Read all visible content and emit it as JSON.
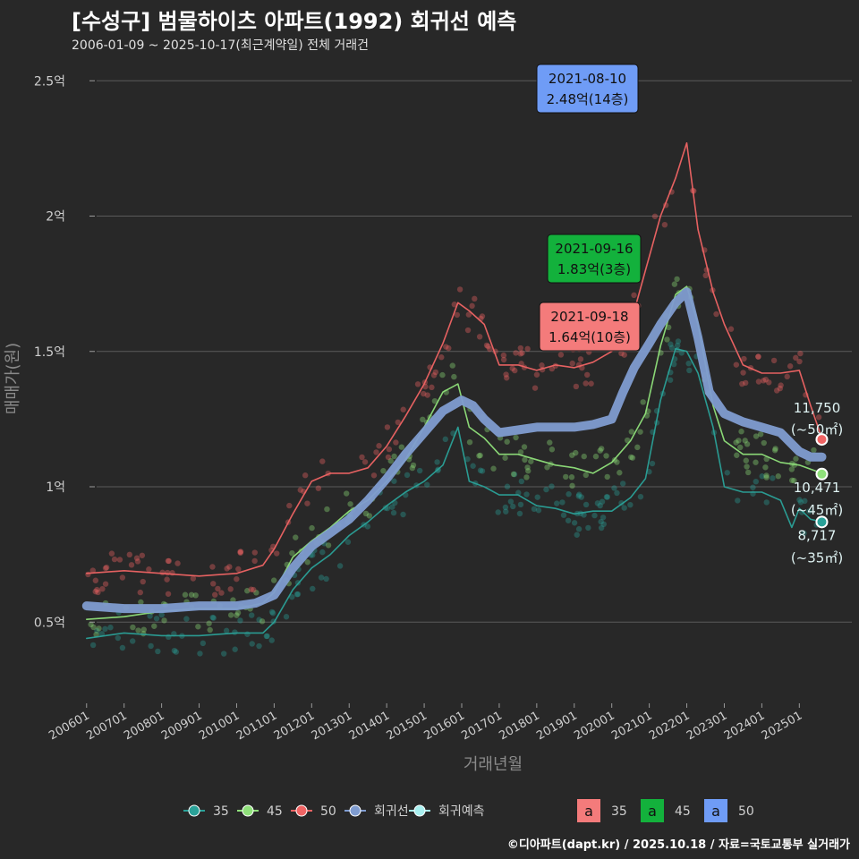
{
  "title": "[수성구] 범물하이츠 아파트(1992) 회귀선 예측",
  "subtitle": "2006-01-09 ~ 2025-10-17(최근계약일) 전체 거래건",
  "credit": "©디아파트(dapt.kr) / 2025.10.18 / 자료=국토교통부 실거래가",
  "colors": {
    "s35": "#2aa198",
    "s45": "#8fe07a",
    "s50": "#f06464",
    "reg": "#7f9cd0",
    "pred": "#a8f0f0"
  },
  "chart_data": {
    "type": "line",
    "title": "[수성구] 범물하이츠 아파트(1992) 회귀선 예측",
    "xlabel": "거래년월",
    "ylabel": "매매가(원)",
    "ylim": [
      0.2,
      2.6
    ],
    "xlim": [
      2005.6,
      2026.4
    ],
    "yticks": [
      {
        "value": 0.5,
        "label": "0.5억"
      },
      {
        "value": 1.0,
        "label": "1억"
      },
      {
        "value": 1.5,
        "label": "1.5억"
      },
      {
        "value": 2.0,
        "label": "2억"
      },
      {
        "value": 2.5,
        "label": "2.5억"
      }
    ],
    "xticks": [
      {
        "value": 2006,
        "label": "200601"
      },
      {
        "value": 2007,
        "label": "200701"
      },
      {
        "value": 2008,
        "label": "200801"
      },
      {
        "value": 2009,
        "label": "200901"
      },
      {
        "value": 2010,
        "label": "201001"
      },
      {
        "value": 2011,
        "label": "201101"
      },
      {
        "value": 2012,
        "label": "201201"
      },
      {
        "value": 2013,
        "label": "201301"
      },
      {
        "value": 2014,
        "label": "201401"
      },
      {
        "value": 2015,
        "label": "201501"
      },
      {
        "value": 2016,
        "label": "201601"
      },
      {
        "value": 2017,
        "label": "201701"
      },
      {
        "value": 2018,
        "label": "201801"
      },
      {
        "value": 2019,
        "label": "201901"
      },
      {
        "value": 2020,
        "label": "202001"
      },
      {
        "value": 2021,
        "label": "202101"
      },
      {
        "value": 2022,
        "label": "202201"
      },
      {
        "value": 2023,
        "label": "202301"
      },
      {
        "value": 2024,
        "label": "202401"
      },
      {
        "value": 2025,
        "label": "202501"
      }
    ],
    "series": [
      {
        "name": "35",
        "color": "#2aa198",
        "x": [
          2006.0,
          2007.0,
          2008.0,
          2009.0,
          2010.0,
          2010.7,
          2011.0,
          2011.5,
          2012.0,
          2012.5,
          2013.0,
          2013.5,
          2014.0,
          2014.5,
          2015.0,
          2015.5,
          2015.9,
          2016.2,
          2016.6,
          2017.0,
          2017.5,
          2018.0,
          2018.5,
          2019.0,
          2019.5,
          2020.0,
          2020.5,
          2020.9,
          2021.3,
          2021.7,
          2022.0,
          2022.3,
          2022.7,
          2023.0,
          2023.5,
          2024.0,
          2024.5,
          2024.8,
          2025.0,
          2025.3,
          2025.6
        ],
        "y": [
          0.44,
          0.46,
          0.45,
          0.45,
          0.46,
          0.46,
          0.5,
          0.62,
          0.7,
          0.75,
          0.82,
          0.87,
          0.93,
          0.98,
          1.02,
          1.08,
          1.22,
          1.02,
          1.0,
          0.97,
          0.97,
          0.93,
          0.92,
          0.9,
          0.91,
          0.91,
          0.96,
          1.03,
          1.32,
          1.51,
          1.5,
          1.42,
          1.22,
          1.0,
          0.98,
          0.98,
          0.95,
          0.85,
          0.92,
          0.88,
          0.87
        ]
      },
      {
        "name": "45",
        "color": "#8fe07a",
        "x": [
          2006.0,
          2007.0,
          2008.0,
          2009.0,
          2010.0,
          2010.7,
          2011.0,
          2011.5,
          2012.0,
          2012.5,
          2013.0,
          2013.5,
          2014.0,
          2014.5,
          2015.0,
          2015.5,
          2015.9,
          2016.2,
          2016.6,
          2017.0,
          2017.5,
          2018.0,
          2018.5,
          2019.0,
          2019.5,
          2020.0,
          2020.5,
          2020.9,
          2021.3,
          2021.7,
          2022.0,
          2022.3,
          2022.7,
          2023.0,
          2023.5,
          2024.0,
          2024.5,
          2025.0,
          2025.6
        ],
        "y": [
          0.51,
          0.52,
          0.54,
          0.55,
          0.55,
          0.57,
          0.61,
          0.74,
          0.8,
          0.85,
          0.91,
          0.95,
          1.02,
          1.1,
          1.22,
          1.35,
          1.38,
          1.22,
          1.18,
          1.12,
          1.12,
          1.1,
          1.08,
          1.07,
          1.05,
          1.09,
          1.17,
          1.27,
          1.52,
          1.71,
          1.74,
          1.6,
          1.3,
          1.17,
          1.12,
          1.12,
          1.09,
          1.08,
          1.05
        ]
      },
      {
        "name": "50",
        "color": "#f06464",
        "x": [
          2006.0,
          2007.0,
          2008.0,
          2009.0,
          2010.0,
          2010.7,
          2011.0,
          2011.5,
          2012.0,
          2012.5,
          2013.0,
          2013.5,
          2014.0,
          2014.5,
          2015.0,
          2015.5,
          2015.9,
          2016.2,
          2016.6,
          2017.0,
          2017.5,
          2018.0,
          2018.5,
          2019.0,
          2019.5,
          2020.0,
          2020.5,
          2020.9,
          2021.3,
          2021.7,
          2022.0,
          2022.3,
          2022.7,
          2023.0,
          2023.5,
          2024.0,
          2024.5,
          2025.0,
          2025.3,
          2025.6
        ],
        "y": [
          0.68,
          0.69,
          0.68,
          0.67,
          0.68,
          0.71,
          0.77,
          0.9,
          1.02,
          1.05,
          1.05,
          1.07,
          1.15,
          1.26,
          1.38,
          1.53,
          1.68,
          1.65,
          1.6,
          1.45,
          1.45,
          1.43,
          1.45,
          1.44,
          1.46,
          1.5,
          1.6,
          1.8,
          2.0,
          2.14,
          2.27,
          1.95,
          1.72,
          1.6,
          1.45,
          1.42,
          1.42,
          1.43,
          1.3,
          1.18
        ]
      },
      {
        "name": "회귀선",
        "color": "#7f9cd0",
        "x": [
          2006.0,
          2007.0,
          2008.0,
          2009.0,
          2010.0,
          2010.5,
          2011.0,
          2011.5,
          2012.0,
          2012.5,
          2013.0,
          2013.5,
          2014.0,
          2014.5,
          2015.0,
          2015.5,
          2016.0,
          2016.3,
          2016.6,
          2017.0,
          2017.5,
          2018.0,
          2018.5,
          2019.0,
          2019.5,
          2020.0,
          2020.3,
          2020.6,
          2021.0,
          2021.3,
          2021.7,
          2022.0,
          2022.3,
          2022.6,
          2023.0,
          2023.5,
          2024.0,
          2024.5,
          2025.0,
          2025.3,
          2025.6
        ],
        "y": [
          0.56,
          0.55,
          0.55,
          0.56,
          0.56,
          0.57,
          0.6,
          0.7,
          0.78,
          0.83,
          0.88,
          0.95,
          1.03,
          1.12,
          1.2,
          1.28,
          1.32,
          1.3,
          1.25,
          1.2,
          1.21,
          1.22,
          1.22,
          1.22,
          1.23,
          1.25,
          1.35,
          1.44,
          1.53,
          1.6,
          1.68,
          1.72,
          1.55,
          1.35,
          1.27,
          1.24,
          1.22,
          1.2,
          1.13,
          1.11,
          1.11
        ]
      }
    ],
    "end_points": [
      {
        "name": "35",
        "x": 2025.6,
        "y": 0.87,
        "value": "8,717",
        "area": "(~35㎡)"
      },
      {
        "name": "45",
        "x": 2025.6,
        "y": 1.047,
        "value": "10,471",
        "area": "(~45㎡)"
      },
      {
        "name": "50",
        "x": 2025.6,
        "y": 1.175,
        "value": "11,750",
        "area": "(~50㎡)"
      }
    ],
    "annotations": [
      {
        "series": "50",
        "date": "2021-08-10",
        "price": "2.48억(14층)",
        "color": "#6f9cf6"
      },
      {
        "series": "45",
        "date": "2021-09-16",
        "price": "1.83억(3층)",
        "color": "#13b13c"
      },
      {
        "series": "35",
        "date": "2021-09-18",
        "price": "1.64억(10층)",
        "color": "#f47b7b"
      }
    ],
    "legend_lines": [
      {
        "label": "35",
        "color": "#2aa198"
      },
      {
        "label": "45",
        "color": "#8fe07a"
      },
      {
        "label": "50",
        "color": "#f06464"
      },
      {
        "label": "회귀선",
        "color": "#7f9cd0"
      },
      {
        "label": "회귀예측",
        "color": "#a8f0f0"
      }
    ],
    "legend_boxes": [
      {
        "letter": "a",
        "label": "35",
        "color": "#f47b7b"
      },
      {
        "letter": "a",
        "label": "45",
        "color": "#13b13c"
      },
      {
        "letter": "a",
        "label": "50",
        "color": "#6f9cf6"
      }
    ]
  }
}
